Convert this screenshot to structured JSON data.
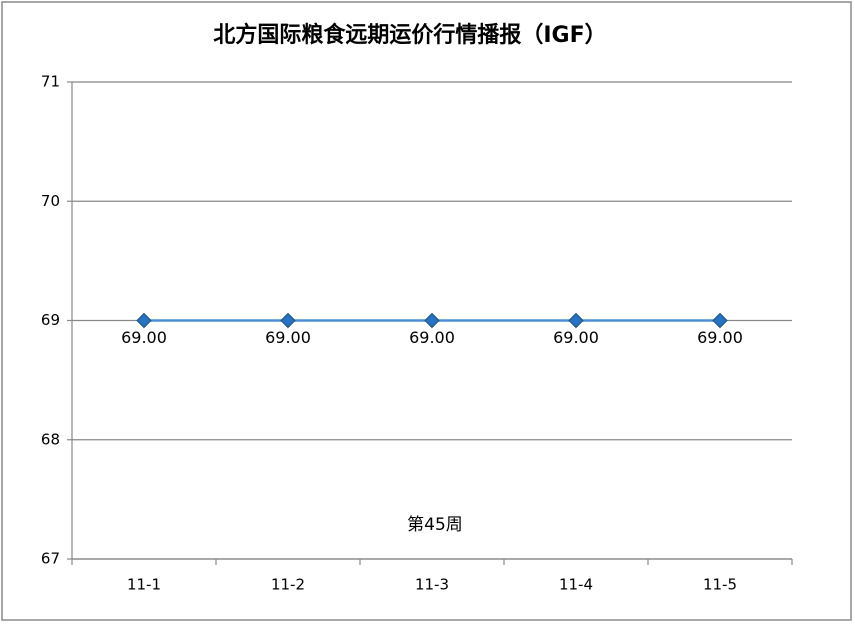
{
  "chart_data": {
    "type": "line",
    "title": "北方国际粮食远期运价行情播报（IGF）",
    "annotation": "第45周",
    "categories": [
      "11-1",
      "11-2",
      "11-3",
      "11-4",
      "11-5"
    ],
    "values": [
      69,
      69,
      69,
      69,
      69
    ],
    "value_labels": [
      "69.00",
      "69.00",
      "69.00",
      "69.00",
      "69.00"
    ],
    "color": "#4a90d0",
    "ylim": [
      67,
      71
    ],
    "yticks": [
      67,
      68,
      69,
      70,
      71
    ],
    "grid": true
  }
}
